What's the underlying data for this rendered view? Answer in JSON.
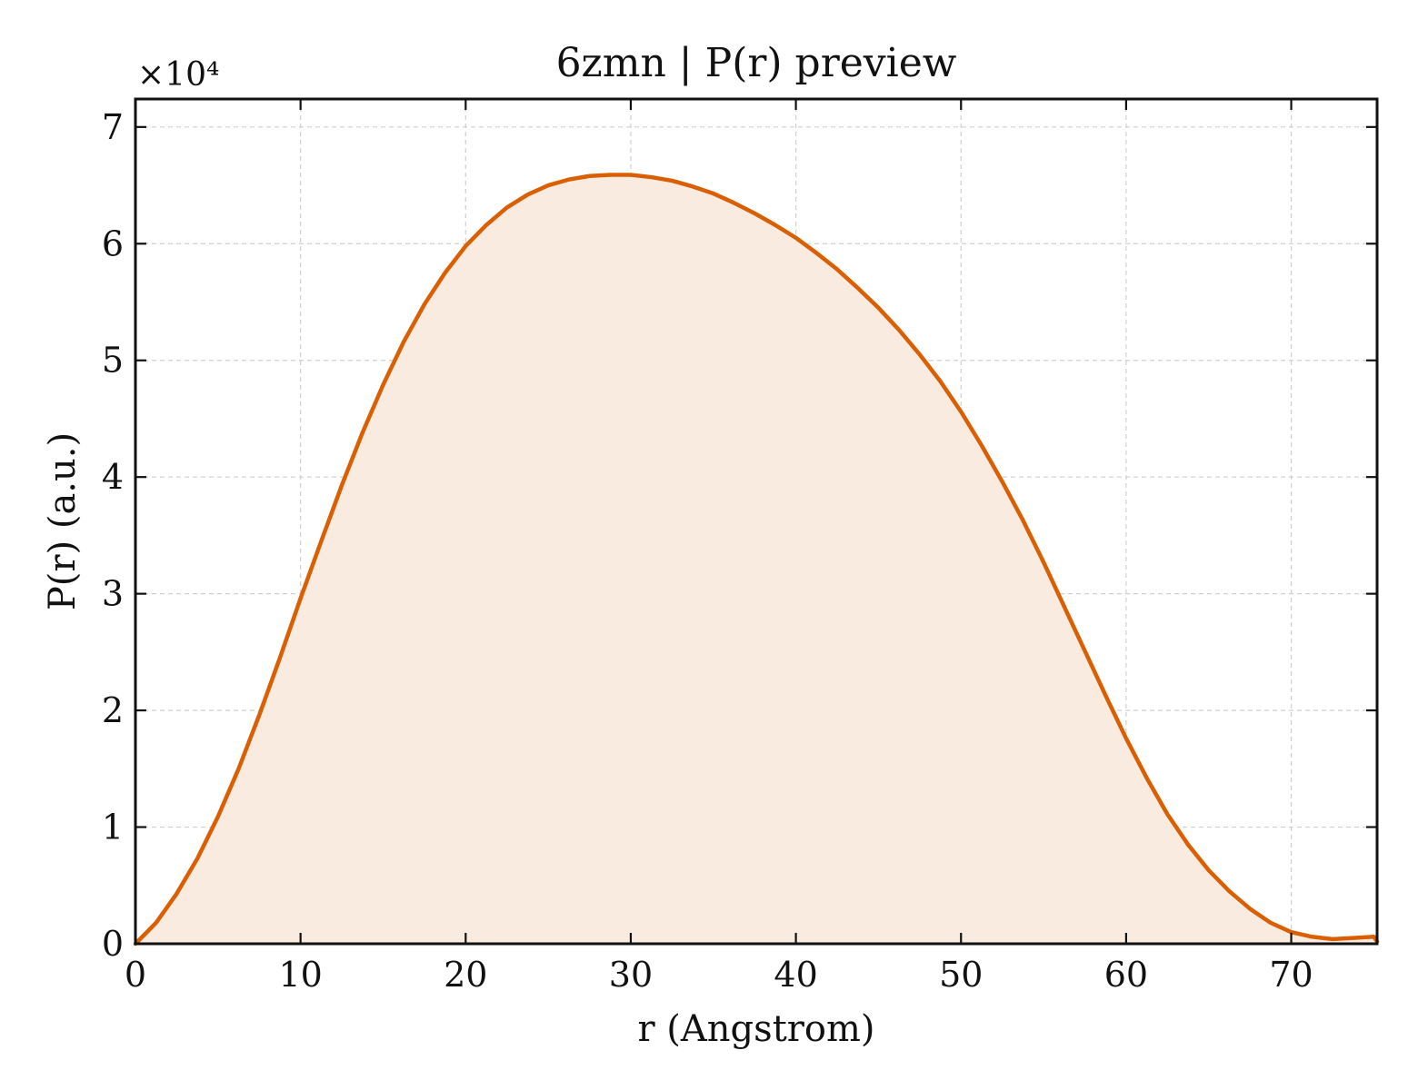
{
  "chart_data": {
    "type": "area",
    "title": "6zmn | P(r) preview",
    "xlabel": "r (Angstrom)",
    "ylabel": "P(r) (a.u.)",
    "y_offset_label": "×10⁴",
    "xlim": [
      0,
      75.2
    ],
    "ylim": [
      0,
      72400
    ],
    "xticks": [
      0,
      10,
      20,
      30,
      40,
      50,
      60,
      70
    ],
    "yticks": [
      0,
      10000,
      20000,
      30000,
      40000,
      50000,
      60000,
      70000
    ],
    "xtick_labels": [
      "0",
      "10",
      "20",
      "30",
      "40",
      "50",
      "60",
      "70"
    ],
    "ytick_labels": [
      "0",
      "1",
      "2",
      "3",
      "4",
      "5",
      "6",
      "7"
    ],
    "grid": true,
    "line_color": "#d95f02",
    "fill_color": "#f9ebe0",
    "series": [
      {
        "x": [
          0,
          1.25,
          2.5,
          3.75,
          5,
          6.25,
          7.5,
          8.75,
          10,
          11.25,
          12.5,
          13.75,
          15,
          16.25,
          17.5,
          18.75,
          20,
          21.25,
          22.5,
          23.75,
          25,
          26.25,
          27.5,
          28.75,
          30,
          31.25,
          32.5,
          33.75,
          35,
          36.25,
          37.5,
          38.75,
          40,
          41.25,
          42.5,
          43.75,
          45,
          46.25,
          47.5,
          48.75,
          50,
          51.25,
          52.5,
          53.75,
          55,
          56.25,
          57.5,
          58.75,
          60,
          61.25,
          62.5,
          63.75,
          65,
          66.25,
          67.5,
          68.75,
          70,
          71.25,
          72.5,
          73.75,
          75,
          75.2
        ],
        "y": [
          0,
          1800,
          4300,
          7300,
          10900,
          15000,
          19600,
          24500,
          29600,
          34500,
          39300,
          43800,
          47900,
          51600,
          54800,
          57500,
          59800,
          61600,
          63100,
          64200,
          65000,
          65500,
          65800,
          65900,
          65900,
          65700,
          65400,
          64900,
          64300,
          63500,
          62600,
          61600,
          60500,
          59200,
          57800,
          56200,
          54500,
          52600,
          50500,
          48200,
          45600,
          42700,
          39600,
          36300,
          32700,
          28900,
          25100,
          21300,
          17600,
          14200,
          11100,
          8500,
          6300,
          4500,
          3000,
          1800,
          1000,
          600,
          400,
          500,
          600,
          200
        ]
      }
    ]
  }
}
